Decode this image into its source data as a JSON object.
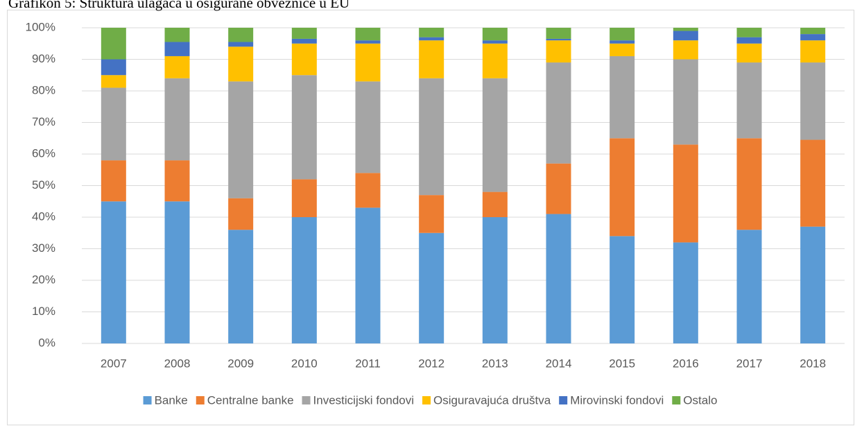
{
  "chart_data": {
    "type": "stacked_bar",
    "title": "Grafikon 5: Struktura ulagača u osigurane obveznice u EU",
    "categories": [
      "2007",
      "2008",
      "2009",
      "2010",
      "2011",
      "2012",
      "2013",
      "2014",
      "2015",
      "2016",
      "2017",
      "2018"
    ],
    "series": [
      {
        "name": "Banke",
        "color": "#5b9bd5",
        "values": [
          45,
          45,
          36,
          40,
          43,
          35,
          40,
          41,
          34,
          32,
          36,
          37
        ]
      },
      {
        "name": "Centralne banke",
        "color": "#ed7d31",
        "values": [
          13,
          13,
          10,
          12,
          11,
          12,
          8,
          16,
          31,
          31,
          29,
          27.5
        ]
      },
      {
        "name": "Investicijski fondovi",
        "color": "#a5a5a5",
        "values": [
          23,
          26,
          37,
          33,
          29,
          37,
          36,
          32,
          26,
          27,
          24,
          24.5
        ]
      },
      {
        "name": "Osiguravajuća društva",
        "color": "#ffc000",
        "values": [
          4,
          7,
          11,
          10,
          12,
          12,
          11,
          7,
          4,
          6,
          6,
          7
        ]
      },
      {
        "name": "Mirovinski fondovi",
        "color": "#4472c4",
        "values": [
          5,
          4.5,
          1.5,
          1.5,
          1,
          1,
          1,
          0.5,
          1,
          3,
          2,
          2
        ]
      },
      {
        "name": "Ostalo",
        "color": "#70ad47",
        "values": [
          10,
          4.5,
          4.5,
          3.5,
          4,
          3,
          4,
          3.5,
          4,
          1,
          3,
          2
        ]
      }
    ],
    "ylim": [
      0,
      100
    ],
    "yticks": [
      {
        "value": 0,
        "label": "0%"
      },
      {
        "value": 10,
        "label": "10%"
      },
      {
        "value": 20,
        "label": "20%"
      },
      {
        "value": 30,
        "label": "30%"
      },
      {
        "value": 40,
        "label": "40%"
      },
      {
        "value": 50,
        "label": "50%"
      },
      {
        "value": 60,
        "label": "60%"
      },
      {
        "value": 70,
        "label": "70%"
      },
      {
        "value": 80,
        "label": "80%"
      },
      {
        "value": 90,
        "label": "90%"
      },
      {
        "value": 100,
        "label": "100%"
      }
    ],
    "grid": true,
    "legend": "bottom"
  }
}
